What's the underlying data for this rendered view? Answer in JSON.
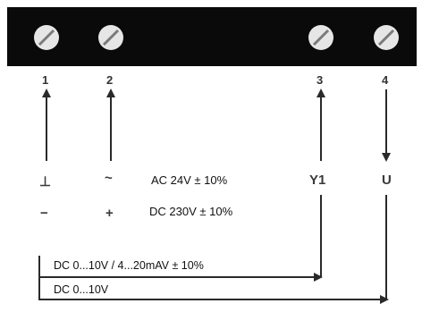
{
  "terminals": [
    {
      "number": "1",
      "arrow": "up",
      "signal_symbol": "⊥",
      "polarity_symbol": "−"
    },
    {
      "number": "2",
      "arrow": "up",
      "signal_symbol": "~",
      "polarity_symbol": "+"
    },
    {
      "number": "3",
      "arrow": "up",
      "signal_symbol": "Y1"
    },
    {
      "number": "4",
      "arrow": "down",
      "signal_symbol": "U"
    }
  ],
  "supply_specs": {
    "ac": "AC 24V ± 10%",
    "dc": "DC 230V ± 10%"
  },
  "signal_lines": [
    {
      "label": "DC 0...10V / 4...20mAV ± 10%",
      "target_terminal": "3"
    },
    {
      "label": "DC 0...10V",
      "target_terminal": "4"
    }
  ],
  "colors": {
    "terminal_block": "#0a0a0a",
    "screw_face": "#e6e6e6",
    "line": "#2a2a2a",
    "text": "#111111"
  }
}
